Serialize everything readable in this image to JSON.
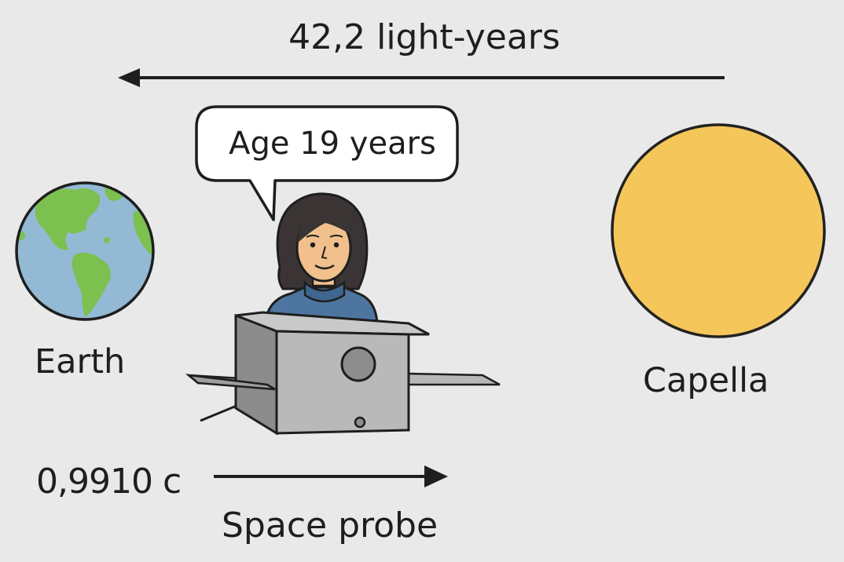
{
  "labels": {
    "distance": "42,2 light-years",
    "age": "Age 19 years",
    "earth": "Earth",
    "capella": "Capella",
    "speed": "0,9910 c",
    "probe": "Space probe"
  },
  "colors": {
    "background": "#e9e9e9",
    "ocean": "#93b9d4",
    "land": "#7cc050",
    "star": "#f5c659",
    "star_outline": "#222222",
    "probe_body": "#b9b9b9",
    "probe_dark": "#8c8c8c",
    "skin": "#f1c08c",
    "hair": "#3a3534",
    "shirt": "#4d75a0",
    "ink": "#1e1e1e"
  },
  "icons": {
    "earth": "earth-globe-icon",
    "capella": "star-icon",
    "probe": "space-probe-icon",
    "traveler": "traveler-person-icon"
  }
}
